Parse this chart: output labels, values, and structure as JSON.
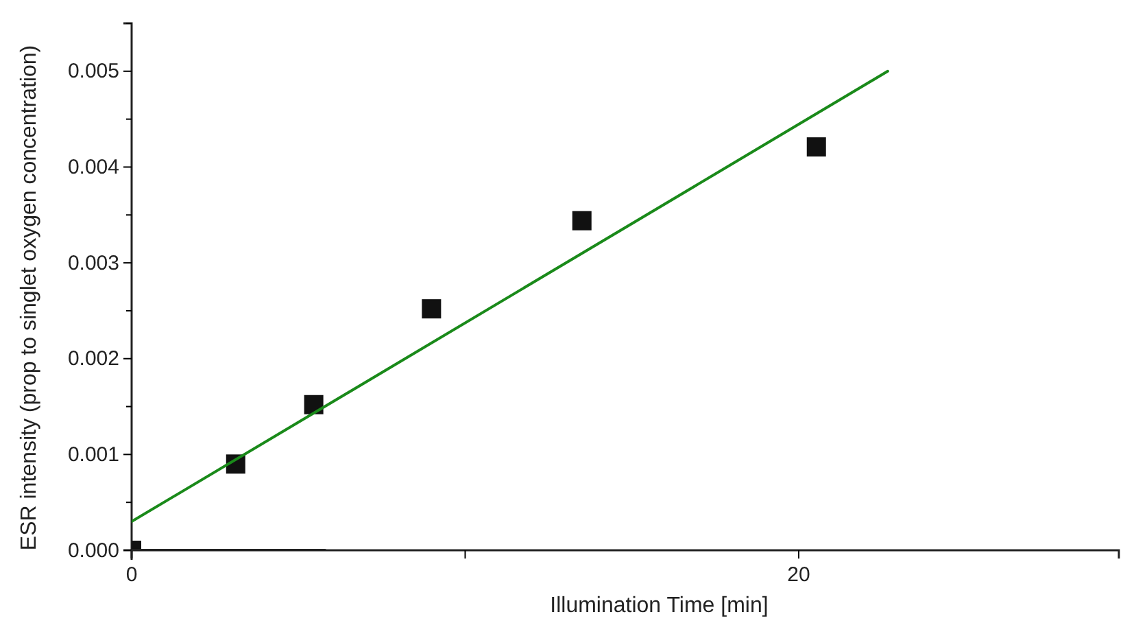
{
  "chart_data": {
    "type": "scatter",
    "xlabel": "Illumination Time [min]",
    "ylabel": "ESR intensity (prop to singlet oxygen concentration)",
    "xlim": [
      0,
      29.6
    ],
    "ylim": [
      0,
      0.0055
    ],
    "xticks": [
      0,
      {
        "value": 10,
        "label": null
      },
      20
    ],
    "yticks": [
      {
        "value": 0,
        "label": "0.000"
      },
      {
        "value": 0.0005,
        "label": null
      },
      {
        "value": 0.001,
        "label": "0.001"
      },
      {
        "value": 0.0015,
        "label": null
      },
      {
        "value": 0.002,
        "label": "0.002"
      },
      {
        "value": 0.0025,
        "label": null
      },
      {
        "value": 0.003,
        "label": "0.003"
      },
      {
        "value": 0.0035,
        "label": null
      },
      {
        "value": 0.004,
        "label": "0.004"
      },
      {
        "value": 0.0045,
        "label": null
      },
      {
        "value": 0.005,
        "label": "0.005"
      },
      {
        "value": 0.0055,
        "label": null
      }
    ],
    "grid": false,
    "series": [
      {
        "marker": "square",
        "color": "#111111",
        "x": [
          0,
          3.12,
          5.46,
          8.99,
          13.5,
          20.53
        ],
        "values": [
          0,
          0.0009,
          0.00152,
          0.00252,
          0.00344,
          0.00421
        ]
      },
      {
        "type": "line",
        "color": "#1a8a1a",
        "x": [
          0,
          22.67
        ],
        "values": [
          0.0003,
          0.005
        ]
      },
      {
        "type": "line",
        "color": "#222222",
        "x": [
          0,
          5.8
        ],
        "values": [
          0,
          0
        ]
      }
    ]
  }
}
